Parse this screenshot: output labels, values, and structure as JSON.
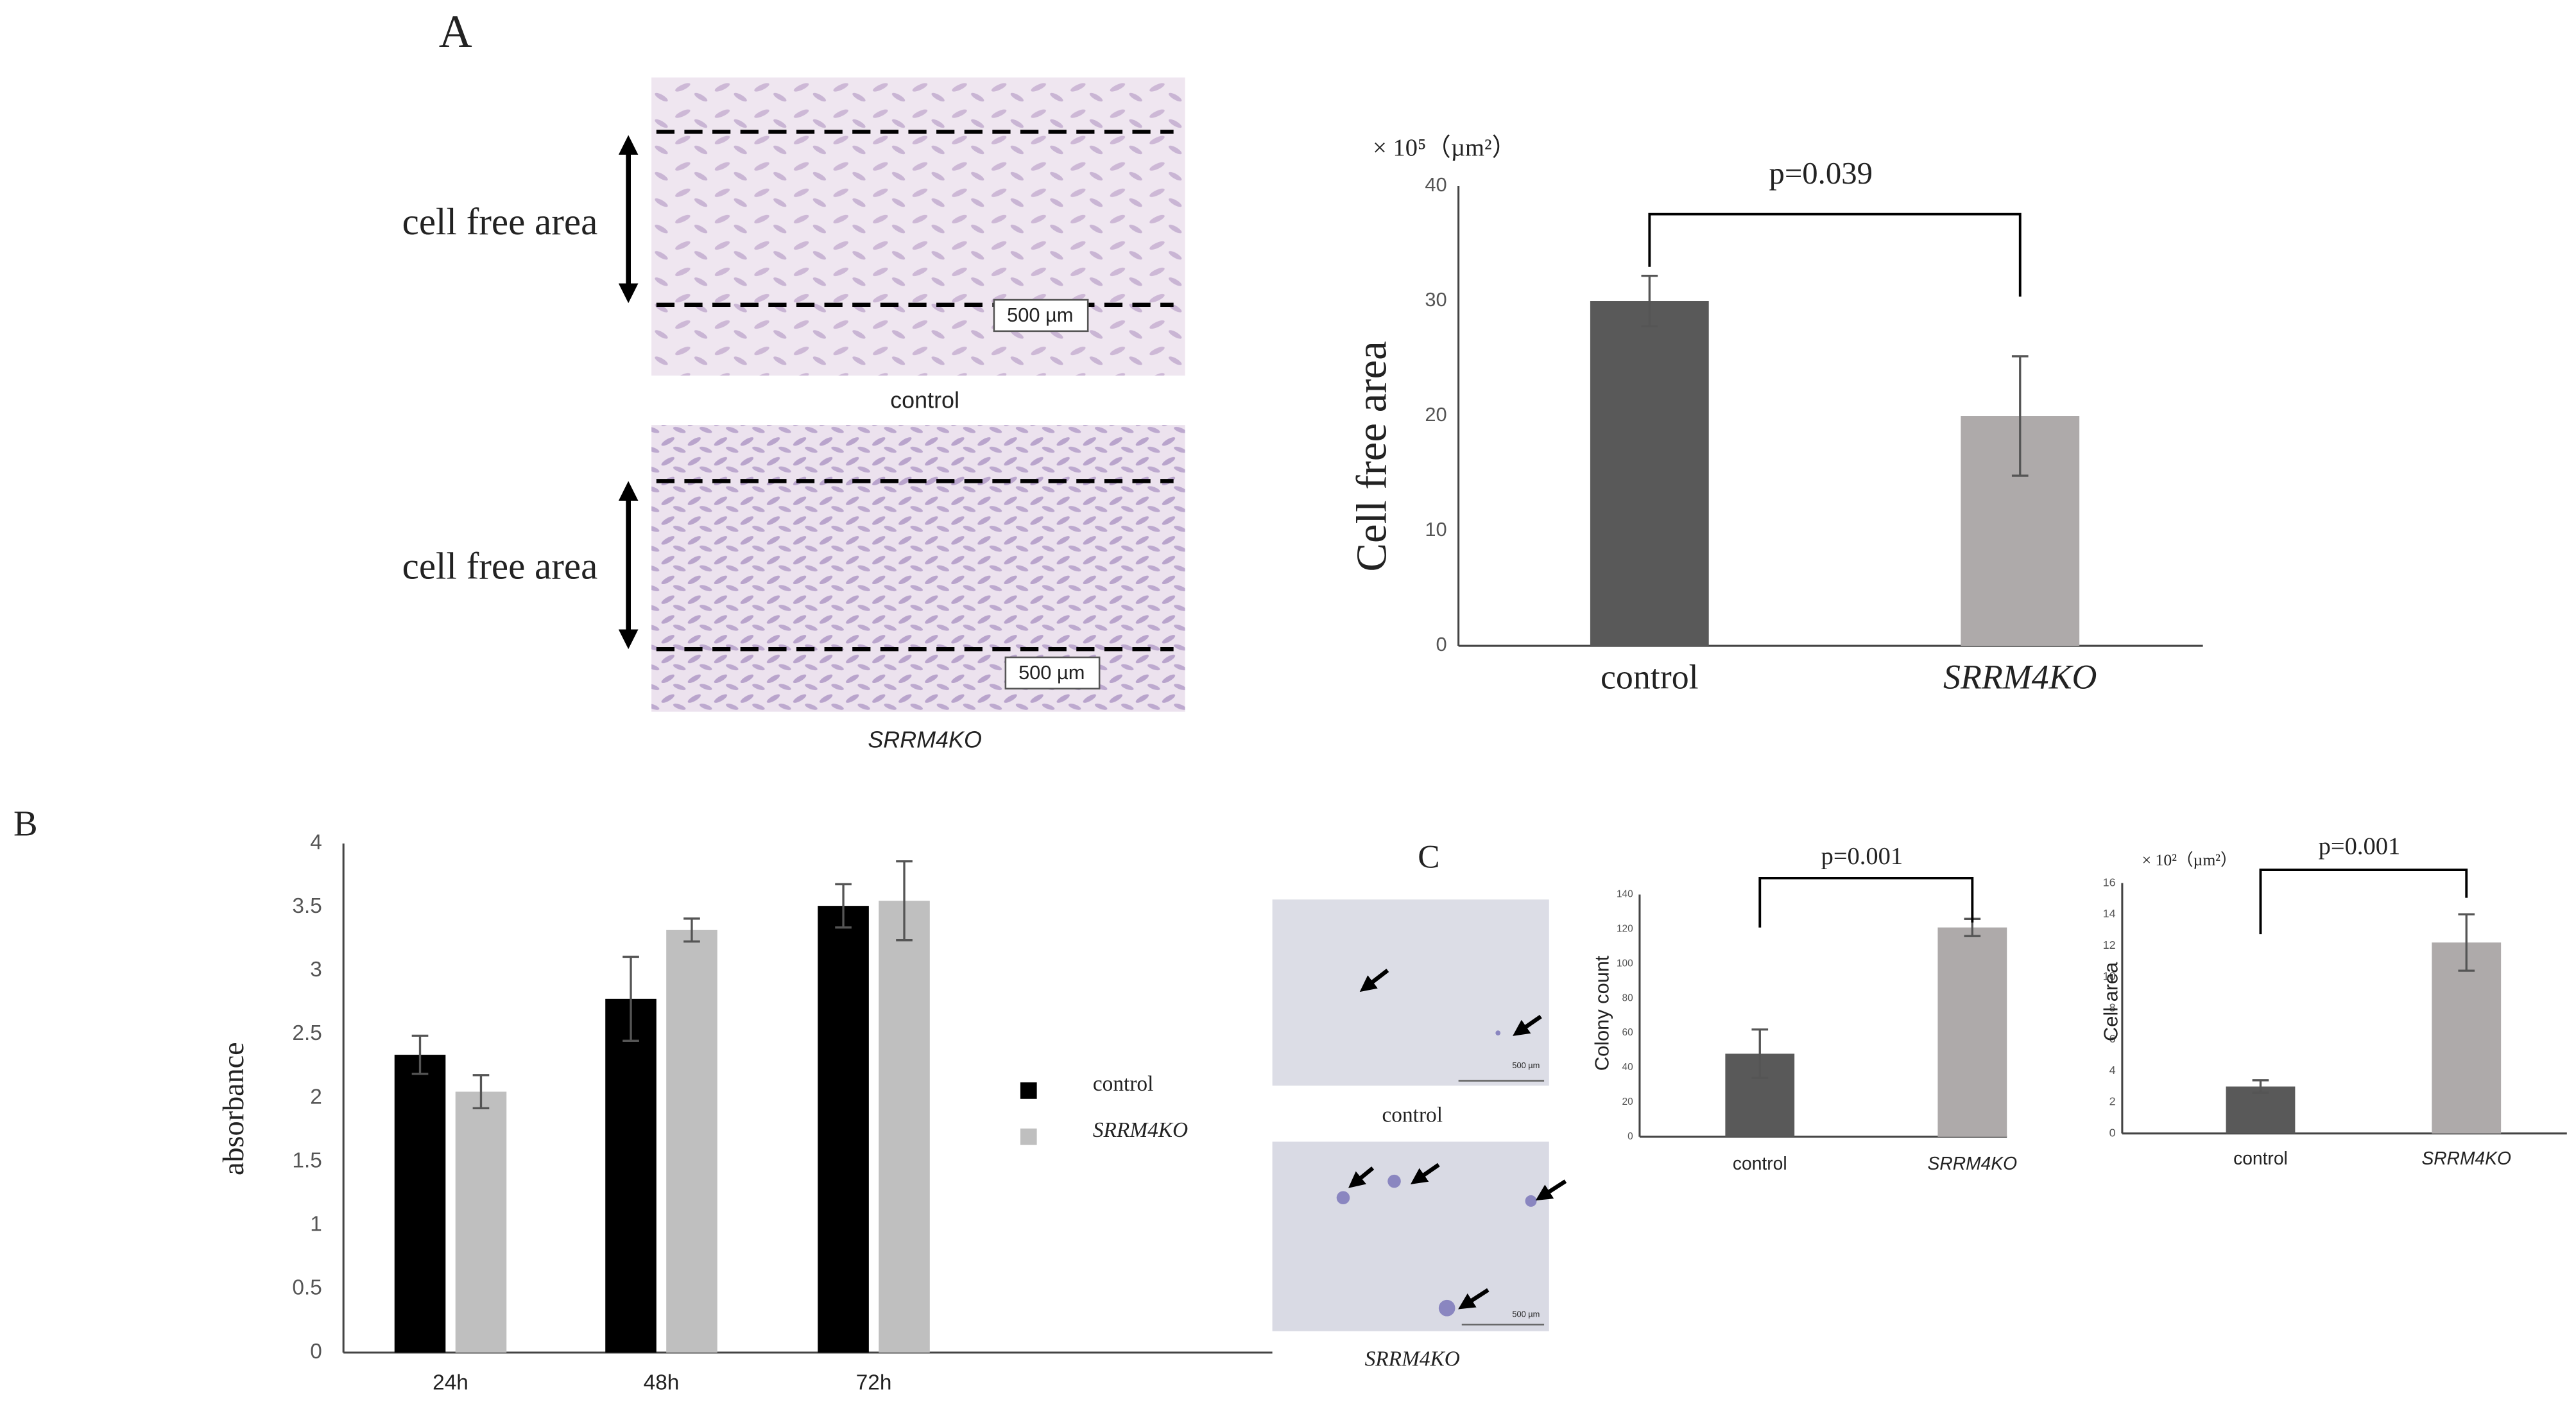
{
  "figure": {
    "panels": [
      "A",
      "B",
      "C"
    ],
    "micrographs_a": {
      "annotation": "cell free area",
      "scale_bar": "500 µm",
      "labels": [
        "control",
        "SRRM4KO"
      ]
    },
    "micrographs_c": {
      "scale_bar": "500 µm",
      "labels": [
        "control",
        "SRRM4KO"
      ]
    }
  },
  "chart_data": [
    {
      "type": "bar",
      "ylabel": "Cell free area",
      "unit_label": "× 10⁵（µm²）",
      "annotation": "p=0.039",
      "categories": [
        "control",
        "SRRM4KO"
      ],
      "values": [
        30,
        20
      ],
      "errors": [
        2.2,
        5.2
      ],
      "colors": [
        "#595959",
        "#aeaaaa"
      ],
      "ylim": [
        0,
        40
      ],
      "yticks": [
        0,
        10,
        20,
        30,
        40
      ]
    },
    {
      "type": "grouped_bar",
      "ylabel": "absorbance",
      "legend": "right",
      "categories": [
        "24h",
        "48h",
        "72h"
      ],
      "series": [
        {
          "name": "control",
          "color": "#000000",
          "values": [
            2.34,
            2.78,
            3.51
          ],
          "errors": [
            0.15,
            0.33,
            0.17
          ]
        },
        {
          "name": "SRRM4KO",
          "color": "#bfbfbf",
          "values": [
            2.05,
            3.32,
            3.55
          ],
          "errors": [
            0.13,
            0.09,
            0.31
          ]
        }
      ],
      "ylim": [
        0,
        4
      ],
      "yticks": [
        0,
        0.5,
        1,
        1.5,
        2,
        2.5,
        3,
        3.5,
        4
      ]
    },
    {
      "type": "bar",
      "ylabel": "Colony count",
      "annotation": "p=0.001",
      "categories": [
        "control",
        "SRRM4KO"
      ],
      "values": [
        48,
        121
      ],
      "errors": [
        14,
        5
      ],
      "colors": [
        "#595959",
        "#aeaaaa"
      ],
      "ylim": [
        0,
        140
      ],
      "yticks": [
        0,
        20,
        40,
        60,
        80,
        100,
        120,
        140
      ]
    },
    {
      "type": "bar",
      "ylabel": "Cell area",
      "unit_label": "× 10²（µm²）",
      "annotation": "p=0.001",
      "categories": [
        "control",
        "SRRM4KO"
      ],
      "values": [
        3,
        12.2
      ],
      "errors": [
        0.4,
        1.8
      ],
      "colors": [
        "#595959",
        "#aeaaaa"
      ],
      "ylim": [
        0,
        16
      ],
      "yticks": [
        0,
        2,
        4,
        6,
        8,
        10,
        12,
        14,
        16
      ]
    }
  ]
}
